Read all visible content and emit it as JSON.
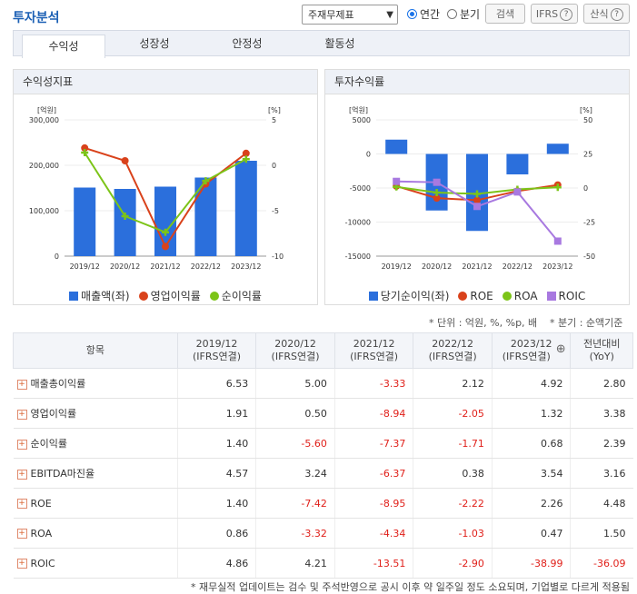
{
  "header": {
    "title": "투자분석",
    "select": "주재무제표",
    "radio_annual": "연간",
    "radio_quarter": "분기",
    "btn_search": "검색",
    "btn_ifrs": "IFRS",
    "btn_formula": "산식"
  },
  "tabs": [
    "수익성",
    "성장성",
    "안정성",
    "활동성"
  ],
  "panels": {
    "left_title": "수익성지표",
    "right_title": "투자수익률",
    "left_unit_l": "[억원]",
    "left_unit_r": "[%]",
    "right_unit_l": "[억원]",
    "right_unit_r": "[%]"
  },
  "notes": {
    "unit": "* 단위 : 억원, %, %p, 배",
    "quarter": "* 분기 : 순액기준",
    "footer": "* 재무실적 업데이트는 검수 및 주석반영으로 공시 이후 약 일주일 정도 소요되며, 기업별로 다르게 적용됨"
  },
  "table": {
    "headers": [
      "항목",
      "2019/12\n(IFRS연결)",
      "2020/12\n(IFRS연결)",
      "2021/12\n(IFRS연결)",
      "2022/12\n(IFRS연결)",
      "2023/12\n(IFRS연결)",
      "전년대비\n(YoY)"
    ],
    "rows": [
      {
        "label": "매출총이익률",
        "values": [
          "6.53",
          "5.00",
          "-3.33",
          "2.12",
          "4.92",
          "2.80"
        ]
      },
      {
        "label": "영업이익률",
        "values": [
          "1.91",
          "0.50",
          "-8.94",
          "-2.05",
          "1.32",
          "3.38"
        ]
      },
      {
        "label": "순이익률",
        "values": [
          "1.40",
          "-5.60",
          "-7.37",
          "-1.71",
          "0.68",
          "2.39"
        ]
      },
      {
        "label": "EBITDA마진율",
        "values": [
          "4.57",
          "3.24",
          "-6.37",
          "0.38",
          "3.54",
          "3.16"
        ]
      },
      {
        "label": "ROE",
        "values": [
          "1.40",
          "-7.42",
          "-8.95",
          "-2.22",
          "2.26",
          "4.48"
        ]
      },
      {
        "label": "ROA",
        "values": [
          "0.86",
          "-3.32",
          "-4.34",
          "-1.03",
          "0.47",
          "1.50"
        ]
      },
      {
        "label": "ROIC",
        "values": [
          "4.86",
          "4.21",
          "-13.51",
          "-2.90",
          "-38.99",
          "-36.09"
        ]
      }
    ]
  },
  "chart_data": [
    {
      "type": "bar",
      "categories": [
        "2019/12",
        "2020/12",
        "2021/12",
        "2022/12",
        "2023/12"
      ],
      "ylim_left": [
        0,
        300000
      ],
      "ylim_right": [
        -10,
        5
      ],
      "yticks_left": [
        "300,000",
        "200,000",
        "100,000",
        "0"
      ],
      "yticks_right": [
        "5",
        "0",
        "-5",
        "-10"
      ],
      "series": [
        {
          "name": "매출액(좌)",
          "kind": "bar",
          "axis": "left",
          "color": "#2b6fdc",
          "values": [
            151000,
            148000,
            153000,
            173000,
            210000
          ]
        },
        {
          "name": "영업이익률",
          "kind": "line",
          "axis": "right",
          "color": "#d9421b",
          "values": [
            1.91,
            0.5,
            -8.94,
            -2.05,
            1.32
          ]
        },
        {
          "name": "순이익률",
          "kind": "line",
          "axis": "right",
          "color": "#7cc418",
          "values": [
            1.4,
            -5.6,
            -7.37,
            -1.71,
            0.68
          ]
        }
      ]
    },
    {
      "type": "bar",
      "categories": [
        "2019/12",
        "2020/12",
        "2021/12",
        "2022/12",
        "2023/12"
      ],
      "ylim_left": [
        -15000,
        5000
      ],
      "ylim_right": [
        -50,
        50
      ],
      "yticks_left": [
        "5000",
        "0",
        "-5000",
        "-10000",
        "-15000"
      ],
      "yticks_right": [
        "50",
        "25",
        "0",
        "-25",
        "-50"
      ],
      "series": [
        {
          "name": "당기순이익(좌)",
          "kind": "bar",
          "axis": "left",
          "color": "#2b6fdc",
          "values": [
            2100,
            -8300,
            -11300,
            -3000,
            1500
          ]
        },
        {
          "name": "ROE",
          "kind": "line",
          "axis": "right",
          "color": "#d9421b",
          "values": [
            1.4,
            -7.42,
            -8.95,
            -2.22,
            2.26
          ]
        },
        {
          "name": "ROA",
          "kind": "line",
          "axis": "right",
          "color": "#7cc418",
          "values": [
            0.86,
            -3.32,
            -4.34,
            -1.03,
            0.47
          ]
        },
        {
          "name": "ROIC",
          "kind": "line",
          "axis": "right",
          "color": "#a879e0",
          "values": [
            4.86,
            4.21,
            -13.51,
            -2.9,
            -38.99
          ]
        }
      ]
    }
  ]
}
